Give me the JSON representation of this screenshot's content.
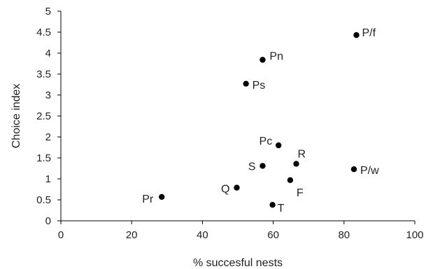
{
  "chart_data": {
    "type": "scatter",
    "xlabel": "% succesful nests",
    "ylabel": "Choice index",
    "xlim": [
      0,
      100
    ],
    "ylim": [
      0,
      5
    ],
    "x_ticks": [
      "0",
      "20",
      "40",
      "60",
      "80",
      "100"
    ],
    "y_ticks": [
      "0",
      "0.5",
      "1",
      "1.5",
      "2",
      "2.5",
      "3",
      "3.5",
      "4",
      "4.5",
      "5"
    ],
    "grid": false,
    "marker_color": "#000000",
    "points": [
      {
        "label": "P/f",
        "x": 83.5,
        "y": 4.43
      },
      {
        "label": "Pn",
        "x": 57.0,
        "y": 3.84
      },
      {
        "label": "Ps",
        "x": 52.3,
        "y": 3.27
      },
      {
        "label": "Pc",
        "x": 61.5,
        "y": 1.8
      },
      {
        "label": "R",
        "x": 66.5,
        "y": 1.36
      },
      {
        "label": "S",
        "x": 57.0,
        "y": 1.31
      },
      {
        "label": "P/w",
        "x": 82.8,
        "y": 1.23
      },
      {
        "label": "F",
        "x": 64.8,
        "y": 0.97
      },
      {
        "label": "Q",
        "x": 49.7,
        "y": 0.79
      },
      {
        "label": "Pr",
        "x": 28.5,
        "y": 0.57
      },
      {
        "label": "T",
        "x": 59.8,
        "y": 0.38
      }
    ]
  }
}
